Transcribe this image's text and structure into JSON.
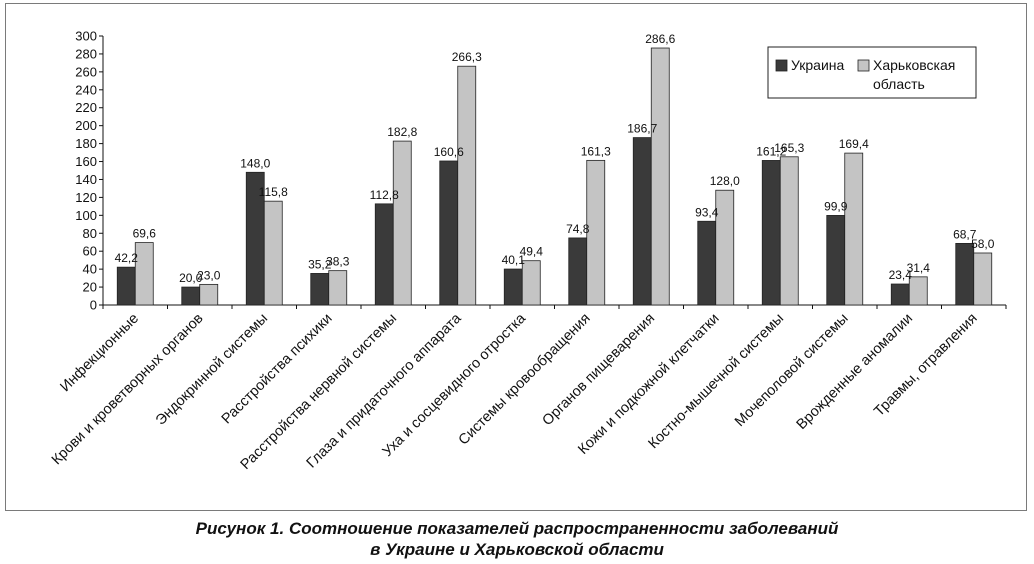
{
  "chart_data": {
    "type": "bar",
    "title": "",
    "xlabel": "",
    "ylabel": "",
    "ylim": [
      0,
      300
    ],
    "ytick_step": 20,
    "grid": false,
    "legend_position": "top-right",
    "categories": [
      "Инфекционные",
      "Крови и кроветворных органов",
      "Эндокринной системы",
      "Расстройства психики",
      "Расстройства нервной системы",
      "Глаза и придаточного аппарата",
      "Уха и сосцевидного отростка",
      "Системы кровообращения",
      "Органов пищеварения",
      "Кожи и подкожной клетчатки",
      "Костно-мышечной системы",
      "Мочеполовой системы",
      "Врожденные аномалии",
      "Травмы, отравления"
    ],
    "series": [
      {
        "name": "Украина",
        "color": "#3a3a3a",
        "values": [
          42.2,
          20.0,
          148.0,
          35.2,
          112.8,
          160.6,
          40.1,
          74.8,
          186.7,
          93.4,
          161.2,
          99.9,
          23.4,
          68.7
        ],
        "labels": [
          "42,2",
          "20,0",
          "148,0",
          "35,2",
          "112,8",
          "160,6",
          "40,1",
          "74,8",
          "186,7",
          "93,4",
          "161,2",
          "99,9",
          "23,4",
          "68,7"
        ]
      },
      {
        "name": "Харьковская область",
        "legend_lines": [
          "Харьковская",
          "область"
        ],
        "color": "#c4c4c4",
        "values": [
          69.6,
          23.0,
          115.8,
          38.3,
          182.8,
          266.3,
          49.4,
          161.3,
          286.6,
          128.0,
          165.3,
          169.4,
          31.4,
          58.0
        ],
        "labels": [
          "69,6",
          "23,0",
          "115,8",
          "38,3",
          "182,8",
          "266,3",
          "49,4",
          "161,3",
          "286,6",
          "128,0",
          "165,3",
          "169,4",
          "31,4",
          "58,0"
        ]
      }
    ]
  },
  "caption": {
    "line1": "Рисунок 1. Соотношение показателей распространенности заболеваний",
    "line2": "в Украине и Харьковской области"
  }
}
